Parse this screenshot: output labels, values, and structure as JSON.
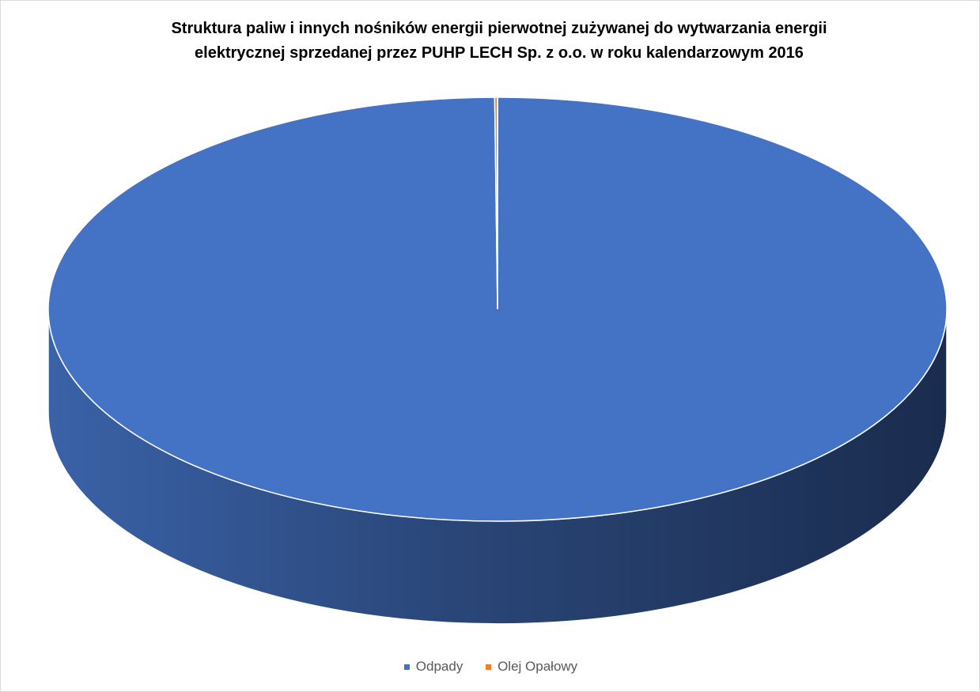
{
  "chart_data": {
    "type": "pie",
    "title_lines": [
      "Struktura paliw i innych nośników energii pierwotnej zużywanej do wytwarzania energii",
      "elektrycznej sprzedanej przez PUHP LECH Sp. z o.o. w roku kalendarzowym 2016"
    ],
    "categories": [
      "Odpady",
      "Olej Opałowy"
    ],
    "values": [
      99.9,
      0.1
    ],
    "colors": [
      "#4472C4",
      "#ED7D31"
    ],
    "style": "3d",
    "legend_position": "bottom"
  }
}
